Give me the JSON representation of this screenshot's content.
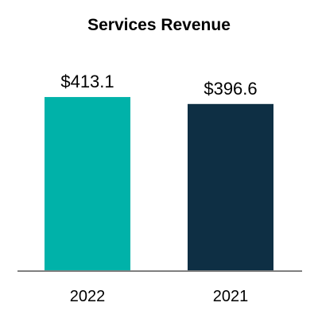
{
  "chart_data": {
    "type": "bar",
    "title": "Services Revenue",
    "categories": [
      "2022",
      "2021"
    ],
    "values": [
      413.1,
      396.6
    ],
    "value_labels": [
      "$413.1",
      "$396.6"
    ],
    "colors": [
      "#00b2a9",
      "#0e2f44"
    ],
    "axis_color": "#7f7f7f",
    "ylim": [
      0,
      500
    ],
    "xlabel": "",
    "ylabel": "",
    "grid": false,
    "legend": "none"
  }
}
